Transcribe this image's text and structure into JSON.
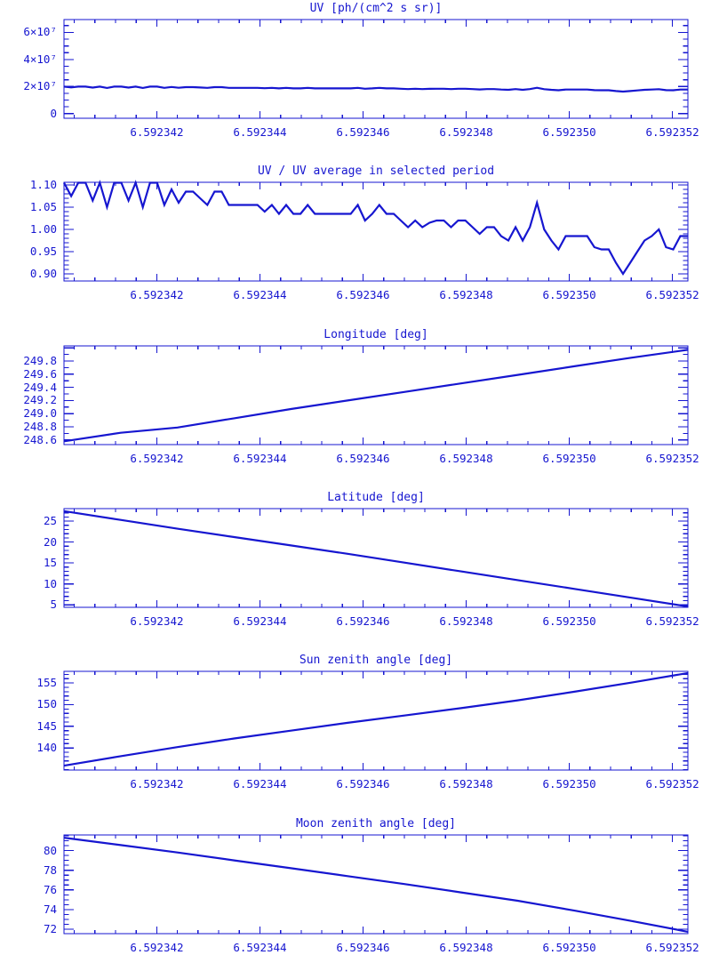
{
  "colors": {
    "accent": "#1616d0",
    "background": "#ffffff"
  },
  "chart_data": [
    {
      "type": "line",
      "title": "UV [ph/(cm^2 s sr)]",
      "xlabel": "",
      "ylabel": "",
      "xlim": [
        6.5923402,
        6.5923523
      ],
      "ylim": [
        -3500000,
        69500000
      ],
      "legend": "none",
      "grid": false,
      "x_ticks": {
        "major": [
          6.592342,
          6.592344,
          6.592346,
          6.592348,
          6.59235,
          6.592352
        ],
        "labels": [
          "6.592342",
          "6.592344",
          "6.592346",
          "6.592348",
          "6.592350",
          "6.592352"
        ],
        "minor_step": 4e-07
      },
      "y_ticks": {
        "major": [
          0,
          20000000,
          40000000,
          60000000
        ],
        "labels": [
          "0",
          "2×10⁷",
          "4×10⁷",
          "6×10⁷"
        ],
        "minor_step": 5000000
      },
      "series": [
        {
          "name": "uv-radiance",
          "x_start": 6.5923402,
          "x_step": 1.39e-07,
          "y_scale": 10000000,
          "y": [
            1.989,
            1.935,
            1.989,
            1.989,
            1.917,
            1.989,
            1.89,
            1.989,
            1.989,
            1.917,
            1.989,
            1.89,
            1.989,
            1.989,
            1.899,
            1.962,
            1.908,
            1.953,
            1.953,
            1.926,
            1.899,
            1.953,
            1.953,
            1.899,
            1.899,
            1.899,
            1.899,
            1.899,
            1.872,
            1.899,
            1.863,
            1.899,
            1.863,
            1.863,
            1.899,
            1.863,
            1.863,
            1.863,
            1.863,
            1.863,
            1.863,
            1.899,
            1.836,
            1.863,
            1.899,
            1.863,
            1.863,
            1.836,
            1.809,
            1.836,
            1.809,
            1.827,
            1.836,
            1.836,
            1.809,
            1.836,
            1.836,
            1.809,
            1.782,
            1.809,
            1.809,
            1.773,
            1.755,
            1.809,
            1.755,
            1.809,
            1.908,
            1.8,
            1.755,
            1.719,
            1.773,
            1.773,
            1.773,
            1.773,
            1.728,
            1.719,
            1.719,
            1.665,
            1.62,
            1.665,
            1.71,
            1.755,
            1.773,
            1.8,
            1.728,
            1.719,
            1.773,
            1.773
          ]
        }
      ]
    },
    {
      "type": "line",
      "title": "UV / UV average in selected period",
      "xlabel": "",
      "ylabel": "",
      "xlim": [
        6.5923402,
        6.5923523
      ],
      "ylim": [
        0.884,
        1.106
      ],
      "legend": "none",
      "grid": false,
      "x_ticks": {
        "major": [
          6.592342,
          6.592344,
          6.592346,
          6.592348,
          6.59235,
          6.592352
        ],
        "labels": [
          "6.592342",
          "6.592344",
          "6.592346",
          "6.592348",
          "6.592350",
          "6.592352"
        ],
        "minor_step": 4e-07
      },
      "y_ticks": {
        "major": [
          0.9,
          0.95,
          1.0,
          1.05,
          1.1
        ],
        "labels": [
          "0.90",
          "0.95",
          "1.00",
          "1.05",
          "1.10"
        ],
        "minor_step": 0.01
      },
      "series": [
        {
          "name": "uv-ratio",
          "x_start": 6.5923402,
          "x_step": 1.39e-07,
          "y_scale": 1,
          "y": [
            1.105,
            1.075,
            1.105,
            1.105,
            1.065,
            1.105,
            1.05,
            1.105,
            1.105,
            1.065,
            1.105,
            1.05,
            1.105,
            1.105,
            1.055,
            1.09,
            1.06,
            1.085,
            1.085,
            1.07,
            1.055,
            1.085,
            1.085,
            1.055,
            1.055,
            1.055,
            1.055,
            1.055,
            1.04,
            1.055,
            1.035,
            1.055,
            1.035,
            1.035,
            1.055,
            1.035,
            1.035,
            1.035,
            1.035,
            1.035,
            1.035,
            1.055,
            1.02,
            1.035,
            1.055,
            1.035,
            1.035,
            1.02,
            1.005,
            1.02,
            1.005,
            1.015,
            1.02,
            1.02,
            1.005,
            1.02,
            1.02,
            1.005,
            0.99,
            1.005,
            1.005,
            0.985,
            0.975,
            1.005,
            0.975,
            1.005,
            1.06,
            1.0,
            0.975,
            0.955,
            0.985,
            0.985,
            0.985,
            0.985,
            0.96,
            0.955,
            0.955,
            0.925,
            0.9,
            0.925,
            0.95,
            0.975,
            0.985,
            1.0,
            0.96,
            0.955,
            0.985,
            0.985
          ]
        }
      ]
    },
    {
      "type": "line",
      "title": "Longitude [deg]",
      "xlabel": "",
      "ylabel": "",
      "xlim": [
        6.5923402,
        6.5923523
      ],
      "ylim": [
        248.53,
        250.03
      ],
      "legend": "none",
      "grid": false,
      "x_ticks": {
        "major": [
          6.592342,
          6.592344,
          6.592346,
          6.592348,
          6.59235,
          6.592352
        ],
        "labels": [
          "6.592342",
          "6.592344",
          "6.592346",
          "6.592348",
          "6.592350",
          "6.592352"
        ],
        "minor_step": 4e-07
      },
      "y_ticks": {
        "major": [
          248.6,
          248.8,
          249.0,
          249.2,
          249.4,
          249.6,
          249.8,
          250.0
        ],
        "labels": [
          "248.6",
          "248.8",
          "249.0",
          "249.2",
          "249.4",
          "249.6",
          "249.8",
          ""
        ],
        "minor_step": 0.1
      },
      "series": [
        {
          "name": "longitude",
          "x": [
            6.5923402,
            6.5923413,
            6.5923424,
            6.5923435,
            6.5923446,
            6.5923457,
            6.5923468,
            6.5923479,
            6.592349,
            6.5923501,
            6.5923512,
            6.5923523
          ],
          "y_scale": 1,
          "y": [
            248.58,
            248.71,
            248.79,
            248.93,
            249.07,
            249.2,
            249.33,
            249.46,
            249.59,
            249.72,
            249.85,
            249.97
          ]
        }
      ]
    },
    {
      "type": "line",
      "title": "Latitude [deg]",
      "xlabel": "",
      "ylabel": "",
      "xlim": [
        6.5923402,
        6.5923523
      ],
      "ylim": [
        4.4,
        28.0
      ],
      "legend": "none",
      "grid": false,
      "x_ticks": {
        "major": [
          6.592342,
          6.592344,
          6.592346,
          6.592348,
          6.59235,
          6.592352
        ],
        "labels": [
          "6.592342",
          "6.592344",
          "6.592346",
          "6.592348",
          "6.592350",
          "6.592352"
        ],
        "minor_step": 4e-07
      },
      "y_ticks": {
        "major": [
          5,
          10,
          15,
          20,
          25
        ],
        "labels": [
          "5",
          "10",
          "15",
          "20",
          "25"
        ],
        "minor_step": 1
      },
      "series": [
        {
          "name": "latitude",
          "x": [
            6.5923402,
            6.5923413,
            6.5923424,
            6.5923435,
            6.5923446,
            6.5923457,
            6.5923468,
            6.5923479,
            6.592349,
            6.5923501,
            6.5923512,
            6.5923523
          ],
          "y_scale": 1,
          "y": [
            27.4,
            25.3,
            23.2,
            21.2,
            19.2,
            17.2,
            15.1,
            13.0,
            10.9,
            8.8,
            6.7,
            4.6
          ]
        }
      ]
    },
    {
      "type": "line",
      "title": "Sun zenith angle [deg]",
      "xlabel": "",
      "ylabel": "",
      "xlim": [
        6.5923402,
        6.5923523
      ],
      "ylim": [
        134.9,
        157.7
      ],
      "legend": "none",
      "grid": false,
      "x_ticks": {
        "major": [
          6.592342,
          6.592344,
          6.592346,
          6.592348,
          6.59235,
          6.592352
        ],
        "labels": [
          "6.592342",
          "6.592344",
          "6.592346",
          "6.592348",
          "6.592350",
          "6.592352"
        ],
        "minor_step": 4e-07
      },
      "y_ticks": {
        "major": [
          140,
          145,
          150,
          155
        ],
        "labels": [
          "140",
          "145",
          "150",
          "155"
        ],
        "minor_step": 1
      },
      "series": [
        {
          "name": "sun-zenith-angle",
          "x": [
            6.5923402,
            6.5923413,
            6.5923424,
            6.5923435,
            6.5923446,
            6.5923457,
            6.5923468,
            6.5923479,
            6.592349,
            6.5923501,
            6.5923512,
            6.5923523
          ],
          "y_scale": 1,
          "y": [
            135.9,
            138.1,
            140.2,
            142.2,
            144.0,
            145.8,
            147.5,
            149.2,
            151.0,
            153.0,
            155.1,
            157.3
          ]
        }
      ]
    },
    {
      "type": "line",
      "title": "Moon zenith angle [deg]",
      "xlabel": "",
      "ylabel": "",
      "xlim": [
        6.5923402,
        6.5923523
      ],
      "ylim": [
        71.56,
        81.58
      ],
      "legend": "none",
      "grid": false,
      "x_ticks": {
        "major": [
          6.592342,
          6.592344,
          6.592346,
          6.592348,
          6.59235,
          6.592352
        ],
        "labels": [
          "6.592342",
          "6.592344",
          "6.592346",
          "6.592348",
          "6.592350",
          "6.592352"
        ],
        "minor_step": 4e-07
      },
      "y_ticks": {
        "major": [
          72,
          74,
          76,
          78,
          80
        ],
        "labels": [
          "72",
          "74",
          "76",
          "78",
          "80"
        ],
        "minor_step": 0.5
      },
      "series": [
        {
          "name": "moon-zenith-angle",
          "x": [
            6.5923402,
            6.5923413,
            6.5923424,
            6.5923435,
            6.5923446,
            6.5923457,
            6.5923468,
            6.5923479,
            6.592349,
            6.5923501,
            6.5923512,
            6.5923523
          ],
          "y_scale": 1,
          "y": [
            81.3,
            80.55,
            79.8,
            79.0,
            78.2,
            77.4,
            76.6,
            75.75,
            74.9,
            73.9,
            72.85,
            71.75
          ]
        }
      ]
    }
  ]
}
